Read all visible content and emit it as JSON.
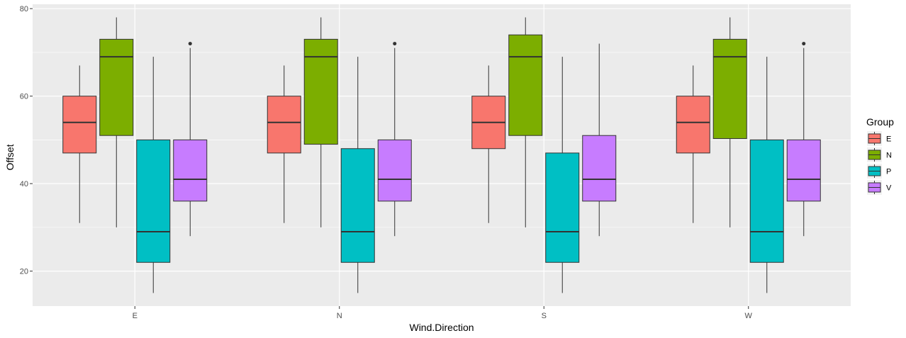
{
  "chart_data": {
    "type": "boxplot",
    "xlabel": "Wind.Direction",
    "ylabel": "Offset",
    "categories": [
      "E",
      "N",
      "S",
      "W"
    ],
    "ylim": [
      12,
      81
    ],
    "y_ticks": [
      20,
      40,
      60,
      80
    ],
    "grid": true,
    "legend": {
      "title": "Group",
      "position": "right"
    },
    "series": [
      {
        "name": "E",
        "color": "#F8766D",
        "boxes": [
          {
            "category": "E",
            "min": 31,
            "q1": 47,
            "median": 54,
            "q3": 60,
            "max": 67,
            "outliers": []
          },
          {
            "category": "N",
            "min": 31,
            "q1": 47,
            "median": 54,
            "q3": 60,
            "max": 67,
            "outliers": []
          },
          {
            "category": "S",
            "min": 31,
            "q1": 48,
            "median": 54,
            "q3": 60,
            "max": 67,
            "outliers": []
          },
          {
            "category": "W",
            "min": 31,
            "q1": 47,
            "median": 54,
            "q3": 60,
            "max": 67,
            "outliers": []
          }
        ]
      },
      {
        "name": "N",
        "color": "#7CAE00",
        "boxes": [
          {
            "category": "E",
            "min": 30,
            "q1": 51,
            "median": 69,
            "q3": 73,
            "max": 78,
            "outliers": []
          },
          {
            "category": "N",
            "min": 30,
            "q1": 49,
            "median": 69,
            "q3": 73,
            "max": 78,
            "outliers": []
          },
          {
            "category": "S",
            "min": 30,
            "q1": 51,
            "median": 69,
            "q3": 74,
            "max": 78,
            "outliers": []
          },
          {
            "category": "W",
            "min": 30,
            "q1": 50.3,
            "median": 69,
            "q3": 73,
            "max": 78,
            "outliers": []
          }
        ]
      },
      {
        "name": "P",
        "color": "#00BFC4",
        "boxes": [
          {
            "category": "E",
            "min": 15,
            "q1": 22,
            "median": 29,
            "q3": 50,
            "max": 69,
            "outliers": []
          },
          {
            "category": "N",
            "min": 15,
            "q1": 22,
            "median": 29,
            "q3": 48,
            "max": 69,
            "outliers": []
          },
          {
            "category": "S",
            "min": 15,
            "q1": 22,
            "median": 29,
            "q3": 47,
            "max": 69,
            "outliers": []
          },
          {
            "category": "W",
            "min": 15,
            "q1": 22,
            "median": 29,
            "q3": 50,
            "max": 69,
            "outliers": []
          }
        ]
      },
      {
        "name": "V",
        "color": "#C77CFF",
        "boxes": [
          {
            "category": "E",
            "min": 28,
            "q1": 36,
            "median": 41,
            "q3": 50,
            "max": 71,
            "outliers": [
              72
            ]
          },
          {
            "category": "N",
            "min": 28,
            "q1": 36,
            "median": 41,
            "q3": 50,
            "max": 71,
            "outliers": [
              72
            ]
          },
          {
            "category": "S",
            "min": 28,
            "q1": 36,
            "median": 41,
            "q3": 51,
            "max": 72,
            "outliers": []
          },
          {
            "category": "W",
            "min": 28,
            "q1": 36,
            "median": 41,
            "q3": 50,
            "max": 71,
            "outliers": [
              72
            ]
          }
        ]
      }
    ]
  }
}
